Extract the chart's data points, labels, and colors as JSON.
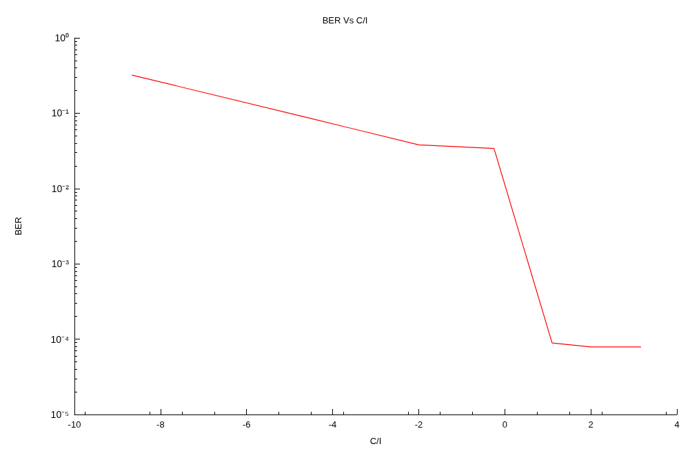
{
  "chart_data": {
    "type": "line",
    "title": "BER Vs C/I",
    "xlabel": "C/I",
    "ylabel": "BER",
    "log": "y",
    "grid": false,
    "marker": "none",
    "line_style": "solid",
    "xlim": [
      -10,
      4
    ],
    "xticks": [
      -10,
      -8,
      -6,
      -4,
      -2,
      0,
      2,
      4
    ],
    "ylim": [
      1e-05,
      1
    ],
    "yticks": [
      {
        "value": 1,
        "label": "10⁰"
      },
      {
        "value": 0.1,
        "label": "10⁻¹"
      },
      {
        "value": 0.01,
        "label": "10⁻²"
      },
      {
        "value": 0.001,
        "label": "10⁻³"
      },
      {
        "value": 0.0001,
        "label": "10⁻⁴"
      },
      {
        "value": 1e-05,
        "label": "10⁻⁵"
      }
    ],
    "series": [
      {
        "color": "#ff0000",
        "x": [
          -8.66,
          -4.5,
          -2.0,
          -0.25,
          1.1,
          2.0,
          3.16
        ],
        "values": [
          0.32,
          0.085,
          0.038,
          0.034,
          8.9e-05,
          7.9e-05,
          7.9e-05
        ]
      }
    ]
  }
}
